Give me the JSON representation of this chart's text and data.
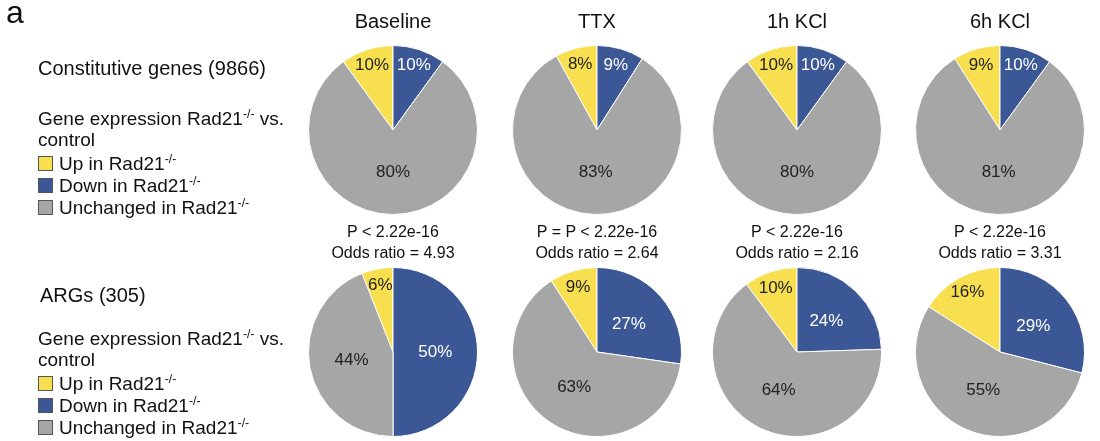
{
  "chart_data": [
    {
      "type": "pie",
      "title": "Baseline",
      "ylabel": "Constitutive genes (9866)",
      "annotations": [
        "a"
      ],
      "legend": "left",
      "legend_title": "Gene expression Rad21$^{-/-}$ vs. control",
      "categories": [
        "Up in Rad21$^{-/-}$",
        "Down in Rad21$^{-/-}$",
        "Unchanged in Rad21$^{-/-}$"
      ],
      "values": [
        10,
        10,
        80
      ],
      "colors": [
        "#f7df4f",
        "#3b5796",
        "#a6a6a6"
      ],
      "value_labels": [
        "10%",
        "10%",
        "80%"
      ]
    },
    {
      "type": "pie",
      "title": "TTX",
      "categories": [
        null,
        null,
        null
      ],
      "values": [
        8,
        9,
        83
      ],
      "colors": [
        "#f7df4f",
        "#3b5796",
        "#a6a6a6"
      ],
      "value_labels": [
        "8%",
        "9%",
        "83%"
      ]
    },
    {
      "type": "pie",
      "title": "1h KCl",
      "categories": [
        null,
        null,
        null
      ],
      "values": [
        10,
        10,
        80
      ],
      "colors": [
        "#f7df4f",
        "#3b5796",
        "#a6a6a6"
      ],
      "value_labels": [
        "10%",
        "10%",
        "80%"
      ]
    },
    {
      "type": "pie",
      "title": "6h KCl",
      "categories": [
        null,
        null,
        null
      ],
      "values": [
        9,
        10,
        81
      ],
      "colors": [
        "#f7df4f",
        "#3b5796",
        "#a6a6a6"
      ],
      "value_labels": [
        "9%",
        "10%",
        "81%"
      ]
    },
    {
      "type": "pie",
      "title": "P < 2.22e-16",
      "subtitle": "Odds ratio = 4.93",
      "ylabel": "ARGs (305)",
      "legend": "left",
      "legend_title": "Gene expression Rad21$^{-/-}$ vs. control",
      "categories": [
        "Up in Rad21$^{-/-}$",
        "Down in Rad21$^{-/-}$",
        "Unchanged in Rad21$^{-/-}$"
      ],
      "values": [
        6,
        50,
        44
      ],
      "colors": [
        "#f7df4f",
        "#3b5796",
        "#a6a6a6"
      ],
      "value_labels": [
        "6%",
        "50%",
        "44%"
      ]
    },
    {
      "type": "pie",
      "title": "P = P < 2.22e-16",
      "subtitle": "Odds ratio = 2.64",
      "categories": [
        null,
        null,
        null
      ],
      "values": [
        9,
        27,
        63
      ],
      "colors": [
        "#f7df4f",
        "#3b5796",
        "#a6a6a6"
      ],
      "value_labels": [
        "9%",
        "27%",
        "63%"
      ]
    },
    {
      "type": "pie",
      "title": "P < 2.22e-16",
      "subtitle": "Odds ratio = 2.16",
      "categories": [
        null,
        null,
        null
      ],
      "values": [
        10,
        24,
        64
      ],
      "colors": [
        "#f7df4f",
        "#3b5796",
        "#a6a6a6"
      ],
      "value_labels": [
        "10%",
        "24%",
        "64%"
      ]
    },
    {
      "type": "pie",
      "title": "P < 2.22e-16",
      "subtitle": "Odds ratio = 3.31",
      "categories": [
        null,
        null,
        null
      ],
      "values": [
        16,
        29,
        55
      ],
      "colors": [
        "#f7df4f",
        "#3b5796",
        "#a6a6a6"
      ],
      "value_labels": [
        "16%",
        "29%",
        "55%"
      ]
    }
  ]
}
